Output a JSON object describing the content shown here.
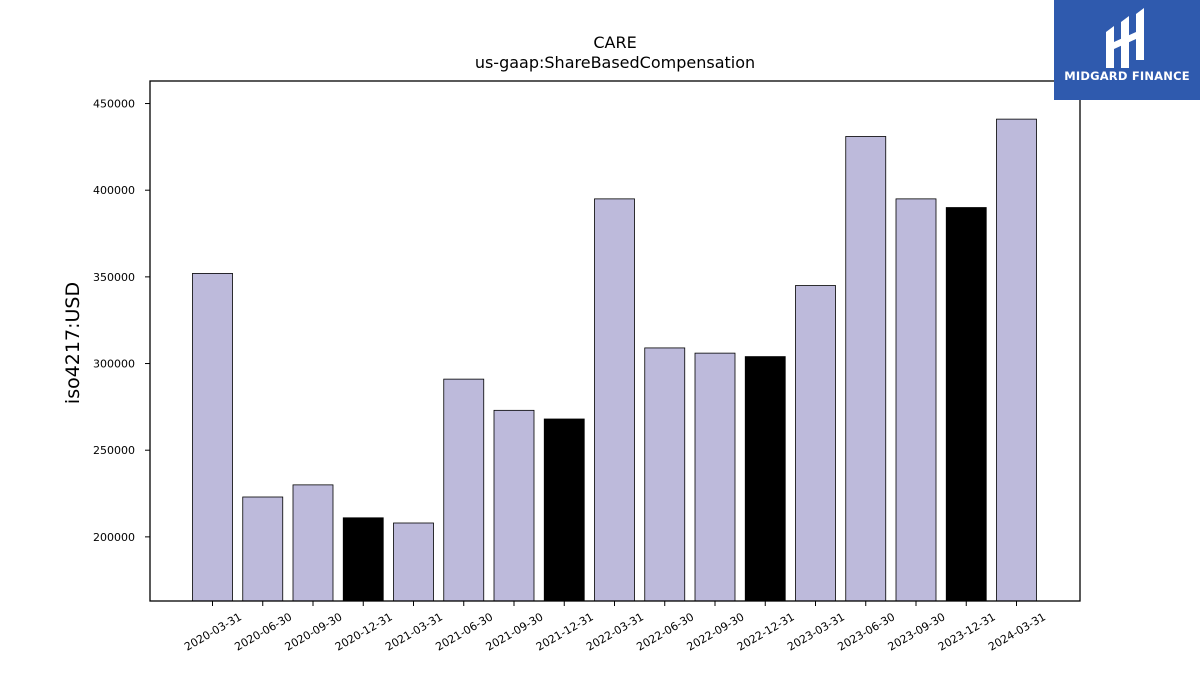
{
  "brand": {
    "name": "MIDGARD FINANCE",
    "icon": "midgard-logo-icon",
    "background_color": "#2f5aae"
  },
  "chart_data": {
    "type": "bar",
    "title": "CARE",
    "subtitle": "us-gaap:ShareBasedCompensation",
    "xlabel": "",
    "ylabel": "iso4217:USD",
    "categories": [
      "2020-03-31",
      "2020-06-30",
      "2020-09-30",
      "2020-12-31",
      "2021-03-31",
      "2021-06-30",
      "2021-09-30",
      "2021-12-31",
      "2022-03-31",
      "2022-06-30",
      "2022-09-30",
      "2022-12-31",
      "2023-03-31",
      "2023-06-30",
      "2023-09-30",
      "2023-12-31",
      "2024-03-31"
    ],
    "values": [
      352000,
      223000,
      230000,
      211000,
      208000,
      291000,
      273000,
      268000,
      395000,
      309000,
      306000,
      304000,
      345000,
      431000,
      395000,
      390000,
      441000
    ],
    "highlighted": [
      false,
      false,
      false,
      true,
      false,
      false,
      false,
      true,
      false,
      false,
      false,
      true,
      false,
      false,
      false,
      true,
      false
    ],
    "ylim": [
      163000,
      463000
    ],
    "yticks": [
      200000,
      250000,
      300000,
      350000,
      400000,
      450000
    ],
    "colors": {
      "bar": "#bdbadb",
      "highlight": "#000000",
      "edge": "#000000"
    },
    "grid": false,
    "legend": "none"
  }
}
